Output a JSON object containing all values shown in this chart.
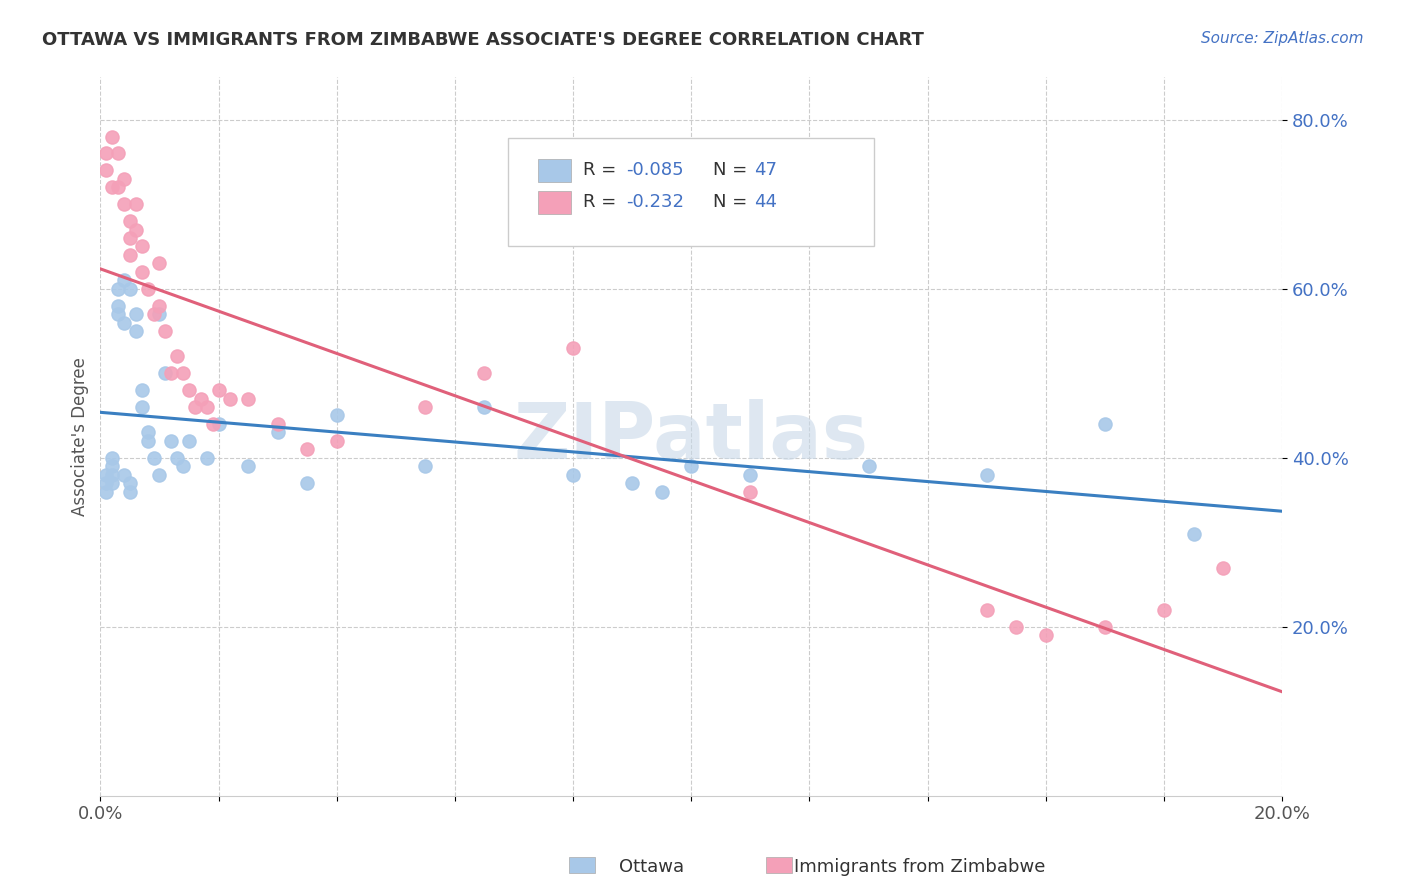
{
  "title": "OTTAWA VS IMMIGRANTS FROM ZIMBABWE ASSOCIATE'S DEGREE CORRELATION CHART",
  "source_text": "Source: ZipAtlas.com",
  "ylabel": "Associate's Degree",
  "legend_label_1": "Ottawa",
  "legend_label_2": "Immigrants from Zimbabwe",
  "xlim": [
    0.0,
    0.2
  ],
  "ylim": [
    0.0,
    0.85
  ],
  "xtick_positions": [
    0.0,
    0.02,
    0.04,
    0.06,
    0.08,
    0.1,
    0.12,
    0.14,
    0.16,
    0.18,
    0.2
  ],
  "xtick_labels": [
    "0.0%",
    "",
    "",
    "",
    "",
    "",
    "",
    "",
    "",
    "",
    "20.0%"
  ],
  "ytick_positions": [
    0.2,
    0.4,
    0.6,
    0.8
  ],
  "ytick_labels": [
    "20.0%",
    "40.0%",
    "60.0%",
    "80.0%"
  ],
  "color_ottawa": "#a8c8e8",
  "color_zimbabwe": "#f4a0b8",
  "line_color_ottawa": "#3a7fc1",
  "line_color_zimbabwe": "#e0607a",
  "watermark": "ZIPatlas",
  "ottawa_x": [
    0.001,
    0.001,
    0.001,
    0.002,
    0.002,
    0.002,
    0.002,
    0.003,
    0.003,
    0.003,
    0.004,
    0.004,
    0.004,
    0.005,
    0.005,
    0.005,
    0.006,
    0.006,
    0.007,
    0.007,
    0.008,
    0.008,
    0.009,
    0.01,
    0.01,
    0.011,
    0.012,
    0.013,
    0.014,
    0.015,
    0.018,
    0.02,
    0.025,
    0.03,
    0.035,
    0.04,
    0.055,
    0.065,
    0.08,
    0.09,
    0.095,
    0.1,
    0.11,
    0.13,
    0.15,
    0.17,
    0.185
  ],
  "ottawa_y": [
    0.38,
    0.37,
    0.36,
    0.4,
    0.39,
    0.38,
    0.37,
    0.6,
    0.58,
    0.57,
    0.61,
    0.56,
    0.38,
    0.6,
    0.37,
    0.36,
    0.57,
    0.55,
    0.48,
    0.46,
    0.43,
    0.42,
    0.4,
    0.57,
    0.38,
    0.5,
    0.42,
    0.4,
    0.39,
    0.42,
    0.4,
    0.44,
    0.39,
    0.43,
    0.37,
    0.45,
    0.39,
    0.46,
    0.38,
    0.37,
    0.36,
    0.39,
    0.38,
    0.39,
    0.38,
    0.44,
    0.31
  ],
  "zimbabwe_x": [
    0.001,
    0.001,
    0.002,
    0.002,
    0.003,
    0.003,
    0.004,
    0.004,
    0.005,
    0.005,
    0.005,
    0.006,
    0.006,
    0.007,
    0.007,
    0.008,
    0.009,
    0.01,
    0.01,
    0.011,
    0.012,
    0.013,
    0.014,
    0.015,
    0.016,
    0.017,
    0.018,
    0.019,
    0.02,
    0.022,
    0.025,
    0.03,
    0.035,
    0.04,
    0.055,
    0.065,
    0.08,
    0.11,
    0.15,
    0.155,
    0.16,
    0.17,
    0.18,
    0.19
  ],
  "zimbabwe_y": [
    0.76,
    0.74,
    0.78,
    0.72,
    0.76,
    0.72,
    0.73,
    0.7,
    0.68,
    0.66,
    0.64,
    0.7,
    0.67,
    0.65,
    0.62,
    0.6,
    0.57,
    0.63,
    0.58,
    0.55,
    0.5,
    0.52,
    0.5,
    0.48,
    0.46,
    0.47,
    0.46,
    0.44,
    0.48,
    0.47,
    0.47,
    0.44,
    0.41,
    0.42,
    0.46,
    0.5,
    0.53,
    0.36,
    0.22,
    0.2,
    0.19,
    0.2,
    0.22,
    0.27
  ]
}
